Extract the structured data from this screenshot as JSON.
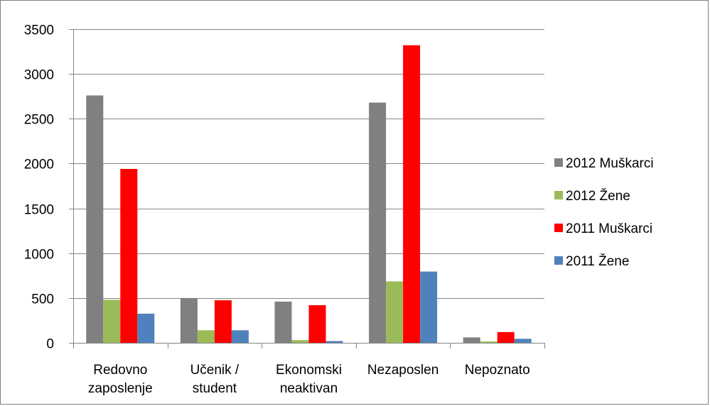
{
  "chart_data": {
    "type": "bar",
    "title": "",
    "xlabel": "",
    "ylabel": "",
    "ylim": [
      0,
      3500
    ],
    "yticks": [
      0,
      500,
      1000,
      1500,
      2000,
      2500,
      3000,
      3500
    ],
    "grid": true,
    "legend_position": "right",
    "categories": [
      [
        "Redovno",
        "zaposlenje"
      ],
      [
        "Učenik /",
        "student"
      ],
      [
        "Ekonomski",
        "neaktivan"
      ],
      [
        "Nezaposlen"
      ],
      [
        "Nepoznato"
      ]
    ],
    "series": [
      {
        "name": "2012 Muškarci",
        "color": "#808080",
        "values": [
          2760,
          500,
          460,
          2680,
          60
        ]
      },
      {
        "name": "2012 Žene",
        "color": "#9BBB59",
        "values": [
          480,
          140,
          30,
          685,
          15
        ]
      },
      {
        "name": "2011 Muškarci",
        "color": "#FF0000",
        "values": [
          1940,
          475,
          420,
          3320,
          120
        ]
      },
      {
        "name": "2011 Žene",
        "color": "#4F81BD",
        "values": [
          325,
          140,
          20,
          795,
          45
        ]
      }
    ]
  }
}
